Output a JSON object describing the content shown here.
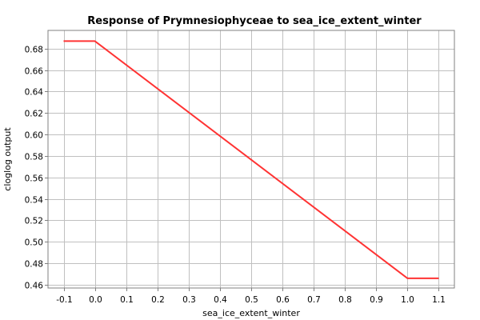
{
  "chart_data": {
    "type": "line",
    "title": "Response of Prymnesiophyceae to sea_ice_extent_winter",
    "xlabel": "sea_ice_extent_winter",
    "ylabel": "cloglog output",
    "xlim": [
      -0.15,
      1.15
    ],
    "ylim": [
      0.457,
      0.697
    ],
    "xticks": [
      -0.1,
      0.0,
      0.1,
      0.2,
      0.3,
      0.4,
      0.5,
      0.6,
      0.7,
      0.8,
      0.9,
      1.0,
      1.1
    ],
    "xtick_labels": [
      "-0.1",
      "0.0",
      "0.1",
      "0.2",
      "0.3",
      "0.4",
      "0.5",
      "0.6",
      "0.7",
      "0.8",
      "0.9",
      "1.0",
      "1.1"
    ],
    "yticks": [
      0.46,
      0.48,
      0.5,
      0.52,
      0.54,
      0.56,
      0.58,
      0.6,
      0.62,
      0.64,
      0.66,
      0.68
    ],
    "ytick_labels": [
      "0.46",
      "0.48",
      "0.50",
      "0.52",
      "0.54",
      "0.56",
      "0.58",
      "0.60",
      "0.62",
      "0.64",
      "0.66",
      "0.68"
    ],
    "grid": true,
    "series": [
      {
        "color": "#ff3333",
        "x": [
          -0.1,
          0.0,
          1.0,
          1.1
        ],
        "y": [
          0.687,
          0.687,
          0.466,
          0.466
        ]
      }
    ]
  }
}
